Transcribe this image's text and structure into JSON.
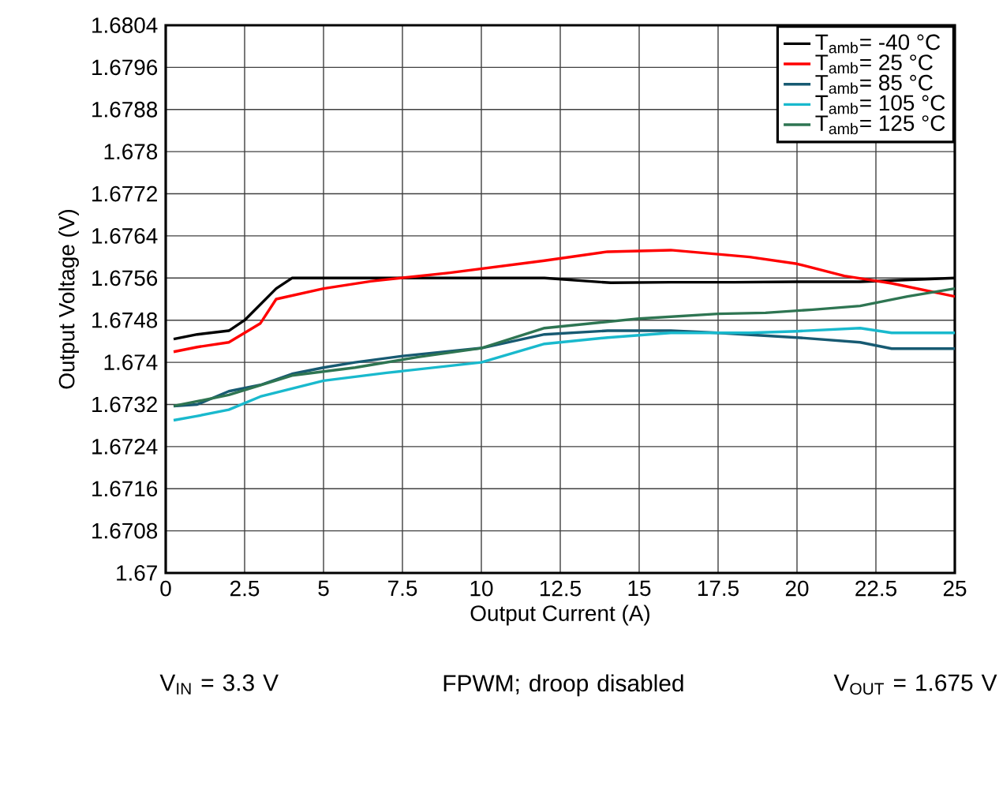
{
  "chart_data": {
    "type": "line",
    "xlabel": "Output Current (A)",
    "ylabel": "Output Voltage (V)",
    "xlim": [
      0,
      25
    ],
    "ylim": [
      1.67,
      1.6804
    ],
    "xticks": [
      0,
      2.5,
      5,
      7.5,
      10,
      12.5,
      15,
      17.5,
      20,
      22.5,
      25
    ],
    "yticks": [
      1.67,
      1.6708,
      1.6716,
      1.6724,
      1.6732,
      1.674,
      1.6748,
      1.6756,
      1.6764,
      1.6772,
      1.678,
      1.6788,
      1.6796,
      1.6804
    ],
    "grid": true,
    "legend": "top right",
    "line_style": "solid",
    "series": [
      {
        "name": "T$_{amb}$= -40 °C",
        "color": "#000000",
        "x": [
          0.25,
          1,
          2,
          2.5,
          3.5,
          4,
          6,
          8,
          10,
          12,
          14.1,
          16,
          18,
          20,
          22,
          25
        ],
        "values": [
          1.67444,
          1.67453,
          1.6746,
          1.6748,
          1.6754,
          1.6756,
          1.6756,
          1.6756,
          1.6756,
          1.6756,
          1.67551,
          1.67552,
          1.67552,
          1.67553,
          1.67553,
          1.6756
        ]
      },
      {
        "name": "T$_{amb}$= 25 °C",
        "color": "#ff0000",
        "x": [
          0.25,
          1,
          2,
          3,
          3.5,
          5,
          6.5,
          9,
          12,
          14,
          16,
          18.5,
          20,
          21.5,
          23,
          25
        ],
        "values": [
          1.6742,
          1.67429,
          1.67438,
          1.67474,
          1.6752,
          1.6754,
          1.67554,
          1.6757,
          1.67593,
          1.6761,
          1.67613,
          1.676,
          1.67587,
          1.67564,
          1.6755,
          1.67525
        ]
      },
      {
        "name": "T$_{amb}$= 85 °C",
        "color": "#175a72",
        "x": [
          0.25,
          1,
          2,
          3,
          4,
          5,
          6,
          7.5,
          10,
          12,
          14,
          16,
          17.5,
          20,
          22,
          23,
          25
        ],
        "values": [
          1.67317,
          1.6732,
          1.67345,
          1.67357,
          1.67378,
          1.6739,
          1.674,
          1.67412,
          1.67427,
          1.67453,
          1.6746,
          1.6746,
          1.67456,
          1.67447,
          1.67438,
          1.67426,
          1.67426
        ]
      },
      {
        "name": "T$_{amb}$= 105 °C",
        "color": "#19b9cd",
        "x": [
          0.25,
          1,
          2,
          3,
          5,
          7,
          8.5,
          10,
          12,
          14,
          16,
          18.5,
          20,
          22,
          23,
          25
        ],
        "values": [
          1.6729,
          1.67298,
          1.6731,
          1.67335,
          1.67365,
          1.6738,
          1.6739,
          1.674,
          1.67435,
          1.67447,
          1.67456,
          1.67456,
          1.67459,
          1.67465,
          1.67456,
          1.67456
        ]
      },
      {
        "name": "T$_{amb}$= 125 °C",
        "color": "#2e7552",
        "x": [
          0.25,
          2,
          4,
          6,
          8,
          10,
          12,
          13.5,
          15,
          17.5,
          19,
          20.5,
          22,
          23.5,
          25
        ],
        "values": [
          1.67317,
          1.67338,
          1.67375,
          1.6739,
          1.6741,
          1.67427,
          1.67465,
          1.67474,
          1.67483,
          1.67492,
          1.67494,
          1.675,
          1.67507,
          1.67525,
          1.6754
        ]
      }
    ],
    "annotations": [
      "V$_{IN}$ = 3.3 V",
      "FPWM; droop disabled",
      "V$_{OUT}$ = 1.675 V"
    ]
  }
}
